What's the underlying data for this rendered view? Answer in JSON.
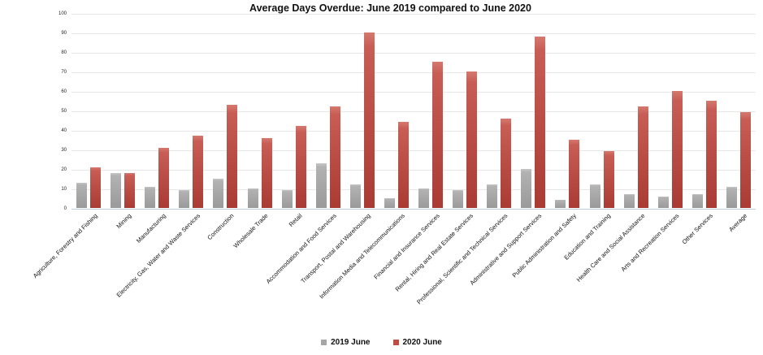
{
  "chart_data": {
    "type": "bar",
    "title": "Average Days Overdue: June 2019 compared to June 2020",
    "categories": [
      "Agriculture, Forestry and Fishing",
      "Mining",
      "Manufacturing",
      "Electricity, Gas, Water and Waste Services",
      "Construction",
      "Wholesale Trade",
      "Retail",
      "Accommodation and Food Services",
      "Transport, Postal and Warehousing",
      "Information Media and Telecommunications",
      "Financial and Insurance Services",
      "Rental, Hiring and Real Estate Services",
      "Professional, Scientific and Technical Services",
      "Administrative and Support Services",
      "Public Administration and Safety",
      "Education and Training",
      "Health Care and Social Assistance",
      "Arts and Recreation Services",
      "Other Services",
      "Average"
    ],
    "series": [
      {
        "name": "2019 June",
        "color": "#a6a6a6",
        "values": [
          13,
          18,
          11,
          9,
          15,
          10,
          9,
          23,
          12,
          5,
          10,
          9,
          12,
          20,
          4,
          12,
          7,
          6,
          7,
          11
        ]
      },
      {
        "name": "2020 June",
        "color": "#bf4a42",
        "values": [
          21,
          18,
          31,
          37,
          53,
          36,
          42,
          52,
          90,
          44,
          75,
          70,
          46,
          88,
          35,
          29,
          52,
          60,
          55,
          49
        ]
      }
    ],
    "xlabel": "",
    "ylabel": "",
    "ylim": [
      0,
      100
    ],
    "y_ticks": [
      0,
      10,
      20,
      30,
      40,
      50,
      60,
      70,
      80,
      90,
      100
    ],
    "grid": true,
    "legend_position": "bottom",
    "colors": {
      "gridline": "#e7e7e7",
      "baseline": "#b9cfe8",
      "background": "#ffffff",
      "title_text": "#111111"
    }
  }
}
